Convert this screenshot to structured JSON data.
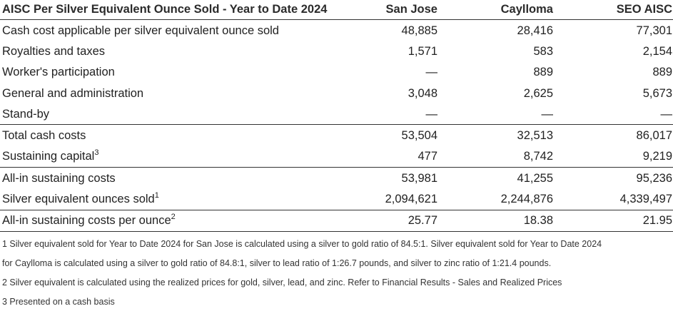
{
  "table": {
    "title": "AISC Per Silver Equivalent Ounce Sold - Year to Date 2024",
    "columns": [
      "San Jose",
      "Caylloma",
      "SEO AISC"
    ],
    "rows": [
      {
        "label": "Cash cost applicable per silver equivalent ounce sold",
        "sup": "",
        "values": [
          "48,885",
          "28,416",
          "77,301"
        ]
      },
      {
        "label": "Royalties and taxes",
        "sup": "",
        "values": [
          "1,571",
          "583",
          "2,154"
        ]
      },
      {
        "label": "Worker's participation",
        "sup": "",
        "values": [
          "—",
          "889",
          "889"
        ]
      },
      {
        "label": "General and administration",
        "sup": "",
        "values": [
          "3,048",
          "2,625",
          "5,673"
        ]
      },
      {
        "label": "Stand-by",
        "sup": "",
        "values": [
          "—",
          "—",
          "—"
        ]
      },
      {
        "label": "Total cash costs",
        "sup": "",
        "values": [
          "53,504",
          "32,513",
          "86,017"
        ]
      },
      {
        "label": "Sustaining capital",
        "sup": "3",
        "values": [
          "477",
          "8,742",
          "9,219"
        ]
      },
      {
        "label": "All-in sustaining costs",
        "sup": "",
        "values": [
          "53,981",
          "41,255",
          "95,236"
        ]
      },
      {
        "label": "Silver equivalent ounces sold",
        "sup": "1",
        "values": [
          "2,094,621",
          "2,244,876",
          "4,339,497"
        ]
      },
      {
        "label": "All-in sustaining costs per ounce",
        "sup": "2",
        "values": [
          "25.77",
          "18.38",
          "21.95"
        ]
      }
    ]
  },
  "footnotes": [
    "1 Silver equivalent sold for Year to Date 2024 for San Jose is calculated using a silver to gold ratio of 84.5:1. Silver equivalent sold for Year to Date 2024",
    "for Caylloma is calculated using a silver to gold ratio of 84.8:1, silver to lead ratio of 1:26.7 pounds, and silver to zinc ratio of 1:21.4 pounds.",
    "2 Silver equivalent is calculated using the realized prices for gold, silver, lead, and zinc. Refer to Financial Results - Sales and Realized Prices",
    "3 Presented on a cash basis"
  ]
}
